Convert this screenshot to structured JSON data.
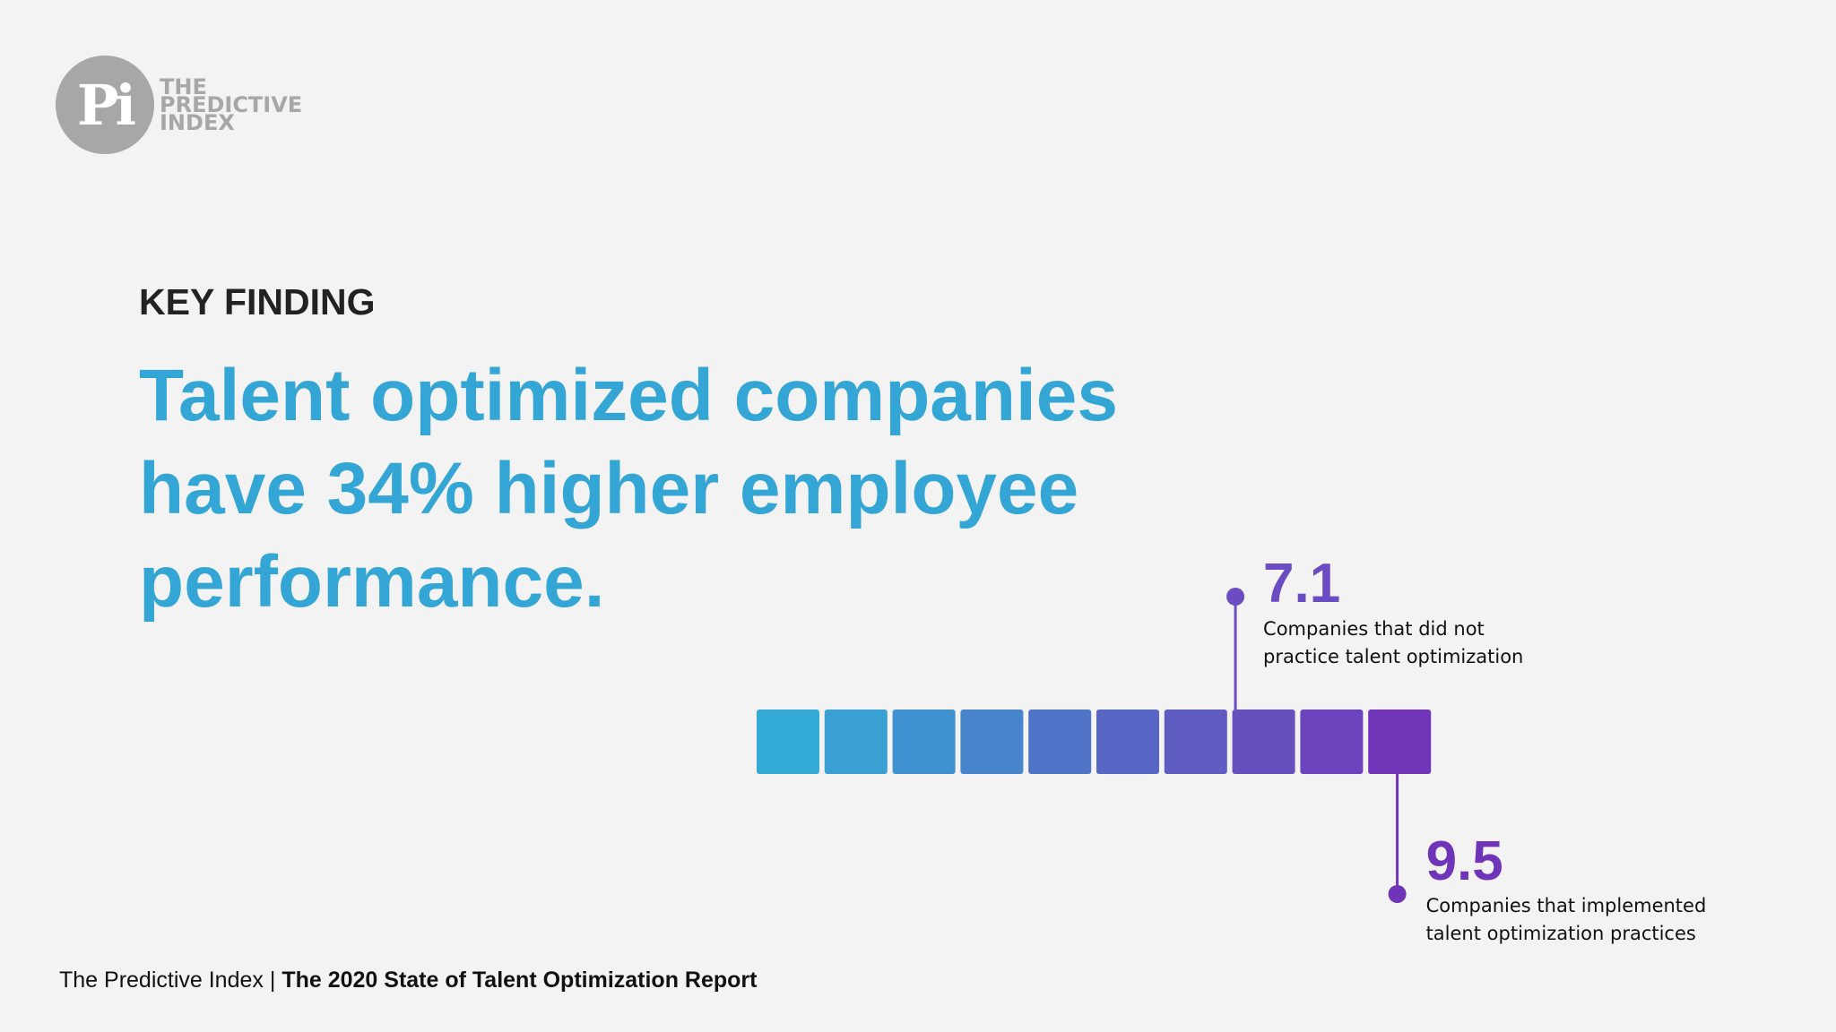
{
  "logo": {
    "mark": "Pi",
    "text_lines": [
      "THE",
      "PREDICTIVE",
      "INDEX"
    ]
  },
  "kicker": "KEY FINDING",
  "headline": "Talent optimized companies have 34% higher employee performance.",
  "footer": {
    "publisher": "The Predictive Index",
    "separator": "|",
    "report": "The 2020 State of Talent Optimization Report"
  },
  "colors": {
    "headline": "#34a6d6",
    "callout_low": "#6b4cc2",
    "callout_high": "#6f34b8"
  },
  "chart_data": {
    "type": "bar",
    "scale_min": 0,
    "scale_max": 10,
    "segments": 10,
    "segment_colors": [
      "#34abd6",
      "#3a9fd2",
      "#3f92cf",
      "#4684cc",
      "#4f74c8",
      "#5866c6",
      "#5f5cc2",
      "#6650c0",
      "#6b44be",
      "#7035b9"
    ],
    "callouts": [
      {
        "value": "7.1",
        "position": 7.1,
        "label_lines": [
          "Companies that did not",
          "practice talent optimization"
        ],
        "placement": "above"
      },
      {
        "value": "9.5",
        "position": 9.5,
        "label_lines": [
          "Companies that implemented",
          "talent optimization practices"
        ],
        "placement": "below"
      }
    ]
  }
}
